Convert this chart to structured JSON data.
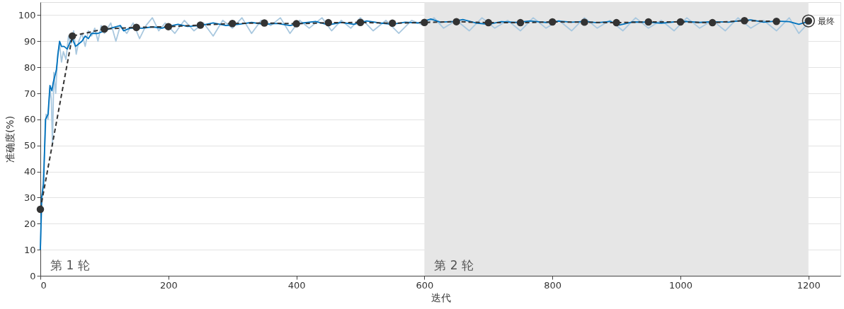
{
  "chart_data": {
    "type": "line",
    "xlabel": "迭代",
    "ylabel": "准确度(%)",
    "xlim": [
      0,
      1250
    ],
    "xticks": [
      0,
      200,
      400,
      600,
      800,
      1000,
      1200
    ],
    "ylim": [
      0,
      105
    ],
    "yticks": [
      0,
      10,
      20,
      30,
      40,
      50,
      60,
      70,
      80,
      90,
      100
    ],
    "grid": "y",
    "bands": [
      {
        "axis": "x",
        "from": 600,
        "to": 1200,
        "label": "第 2 轮",
        "color": "#e6e6e6"
      }
    ],
    "annotations": [
      "第 1 轮",
      {
        "text": "最终",
        "x": 1200,
        "y": 97.8
      }
    ],
    "series": [
      {
        "color": "#a9c8df",
        "line_style": "solid",
        "marker": "none",
        "x": [
          0,
          3,
          6,
          9,
          12,
          15,
          17,
          19,
          21,
          24,
          27,
          30,
          33,
          36,
          40,
          44,
          48,
          52,
          56,
          60,
          65,
          70,
          75,
          80,
          85,
          90,
          95,
          100,
          110,
          118,
          125,
          135,
          145,
          155,
          165,
          175,
          185,
          195,
          210,
          225,
          240,
          255,
          270,
          285,
          300,
          315,
          330,
          345,
          360,
          375,
          390,
          405,
          420,
          440,
          455,
          470,
          485,
          500,
          520,
          540,
          560,
          580,
          600,
          615,
          630,
          650,
          670,
          690,
          710,
          730,
          750,
          770,
          790,
          810,
          830,
          850,
          870,
          890,
          910,
          930,
          950,
          970,
          990,
          1010,
          1030,
          1050,
          1070,
          1090,
          1110,
          1130,
          1150,
          1170,
          1185,
          1200
        ],
        "values": [
          10,
          32,
          45,
          62,
          60,
          72,
          68,
          50,
          78,
          70,
          85,
          89,
          82,
          86,
          83,
          92,
          89,
          94,
          85,
          90,
          93,
          88,
          94,
          92,
          95,
          90,
          96,
          93,
          97,
          90,
          96,
          93,
          97,
          91,
          96,
          99,
          94,
          97,
          93,
          98,
          94,
          97,
          92,
          98,
          95,
          99,
          93,
          98,
          96,
          99,
          93,
          98,
          95,
          99,
          94,
          98,
          95,
          99,
          94,
          98,
          93,
          98,
          96,
          99,
          95,
          98,
          94,
          99,
          95,
          98,
          94,
          99,
          95,
          98,
          94,
          99,
          95,
          98,
          94,
          99,
          95,
          98,
          94,
          99,
          95,
          98,
          94,
          99,
          95,
          98,
          94,
          99,
          93,
          97
        ]
      },
      {
        "color": "#0072bd",
        "line_style": "solid",
        "marker": "none",
        "x": [
          0,
          2,
          5,
          8,
          12,
          15,
          18,
          20,
          23,
          25,
          28,
          30,
          33,
          37,
          42,
          47,
          50,
          55,
          60,
          65,
          70,
          75,
          80,
          90,
          100,
          110,
          125,
          130,
          140,
          150,
          160,
          175,
          190,
          200,
          215,
          230,
          250,
          270,
          290,
          310,
          330,
          350,
          370,
          390,
          410,
          430,
          450,
          470,
          490,
          510,
          530,
          550,
          570,
          590,
          610,
          625,
          645,
          660,
          680,
          700,
          720,
          745,
          765,
          790,
          810,
          830,
          850,
          870,
          890,
          905,
          925,
          950,
          970,
          990,
          1010,
          1030,
          1050,
          1075,
          1095,
          1110,
          1130,
          1150,
          1170,
          1185,
          1200
        ],
        "values": [
          10,
          30,
          35,
          60,
          62,
          73,
          71,
          74,
          77,
          79,
          86,
          90,
          88,
          88,
          87,
          90,
          91,
          88,
          89,
          90,
          92,
          91,
          93,
          93,
          94,
          95,
          96,
          94,
          95,
          95,
          95,
          95.5,
          95,
          95.7,
          96.5,
          95.7,
          96,
          97,
          96,
          96.5,
          97.2,
          96.5,
          96.8,
          96,
          97,
          97.6,
          96.3,
          97.2,
          96.5,
          97.8,
          97,
          96.5,
          97.3,
          97,
          98.5,
          97.3,
          97.6,
          98.3,
          97,
          96.5,
          97.5,
          97.2,
          97.8,
          97.2,
          97.7,
          97.3,
          97.6,
          97.1,
          97.6,
          96.2,
          97.4,
          97.3,
          96.9,
          97.4,
          97.6,
          97.2,
          97.5,
          97.3,
          97.9,
          98.2,
          97.3,
          97.7,
          97.5,
          96.5,
          97.6
        ]
      },
      {
        "color": "#333333",
        "line_style": "dashed",
        "marker": "circle",
        "x": [
          0,
          50,
          100,
          150,
          200,
          250,
          300,
          350,
          400,
          450,
          500,
          550,
          600,
          650,
          700,
          750,
          800,
          850,
          900,
          950,
          1000,
          1050,
          1100,
          1150
        ],
        "values": [
          25.5,
          92,
          94.7,
          95.3,
          95.6,
          96.2,
          96.8,
          97,
          96.7,
          97.1,
          97.2,
          96.9,
          97.2,
          97.5,
          97.1,
          97.1,
          97.4,
          97.3,
          97.1,
          97.4,
          97.4,
          97.1,
          97.9,
          97.6
        ]
      },
      {
        "type": "scatter",
        "color": "#333333",
        "marker": "circle",
        "x": [
          1200
        ],
        "values": [
          97.8
        ]
      }
    ]
  }
}
